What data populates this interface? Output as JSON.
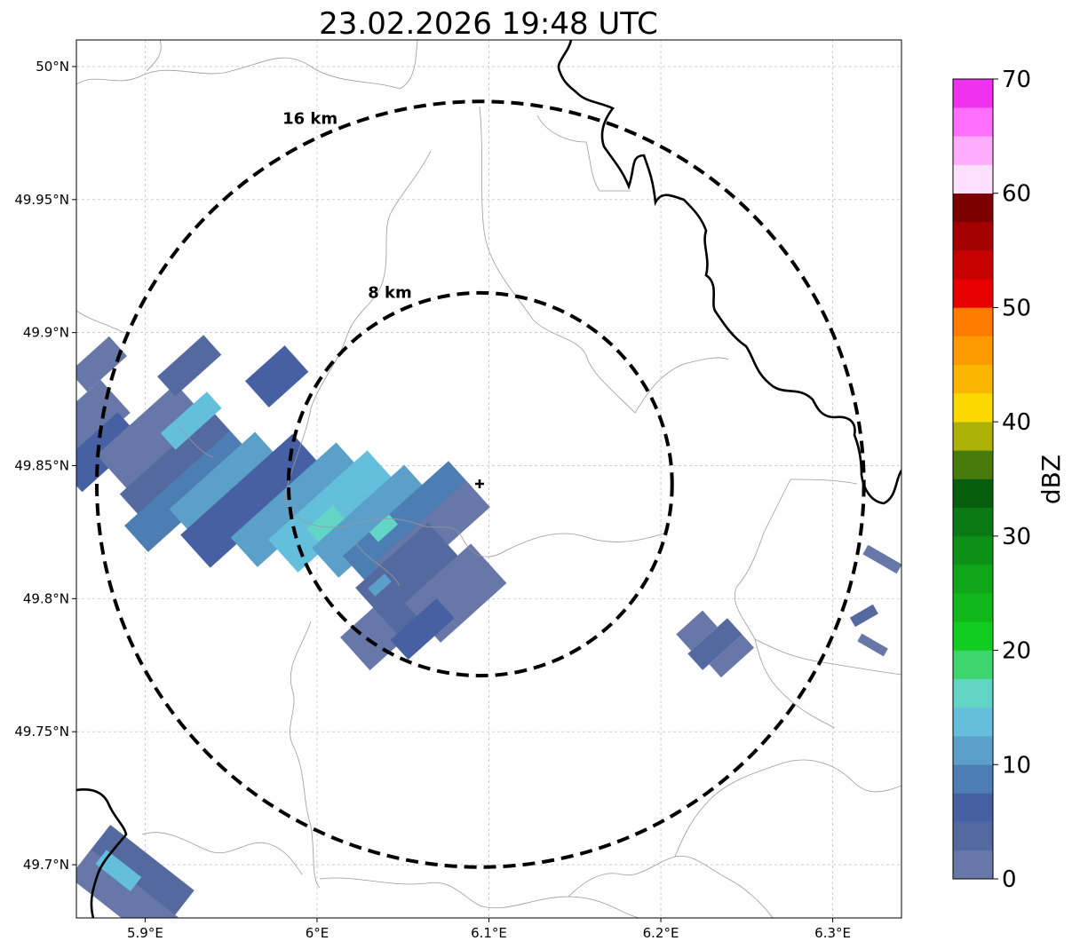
{
  "title": "23.02.2026 19:48 UTC",
  "map": {
    "lon_range": [
      5.86,
      6.34
    ],
    "lat_range": [
      49.68,
      50.01
    ],
    "x_ticks": [
      {
        "value": 5.9,
        "label": "5.9°E"
      },
      {
        "value": 6.0,
        "label": "6°E"
      },
      {
        "value": 6.1,
        "label": "6.1°E"
      },
      {
        "value": 6.2,
        "label": "6.2°E"
      },
      {
        "value": 6.3,
        "label": "6.3°E"
      }
    ],
    "y_ticks": [
      {
        "value": 50.0,
        "label": "50°N"
      },
      {
        "value": 49.95,
        "label": "49.95°N"
      },
      {
        "value": 49.9,
        "label": "49.9°N"
      },
      {
        "value": 49.85,
        "label": "49.85°N"
      },
      {
        "value": 49.8,
        "label": "49.8°N"
      },
      {
        "value": 49.75,
        "label": "49.75°N"
      },
      {
        "value": 49.7,
        "label": "49.7°N"
      }
    ],
    "grid": true,
    "radar_site": {
      "lon": 6.095,
      "lat": 49.843
    },
    "range_rings": [
      {
        "radius_km": 16,
        "label": "16 km"
      },
      {
        "radius_km": 8,
        "label": "8 km"
      }
    ]
  },
  "colorbar": {
    "label": "dBZ",
    "min": 0,
    "max": 70,
    "step": 2.5,
    "tick_labels": [
      "0",
      "10",
      "20",
      "30",
      "40",
      "50",
      "60",
      "70"
    ],
    "colors": [
      "#6677a8",
      "#5469a0",
      "#4660a3",
      "#4c7db3",
      "#5aa0c8",
      "#64bfdd",
      "#62d5c6",
      "#3ed56f",
      "#12cc22",
      "#10b81a",
      "#0fa719",
      "#0c9116",
      "#0a7a12",
      "#075f0e",
      "#487b0a",
      "#adb005",
      "#fbd800",
      "#fbb600",
      "#fc9a00",
      "#fe7b00",
      "#e80000",
      "#c70000",
      "#a50000",
      "#7d0000",
      "#ffe0ff",
      "#ffaeff",
      "#ff6eff",
      "#f031f0"
    ]
  },
  "echoes": [
    {
      "lon": 5.93,
      "lat": 49.87,
      "dbz": 3
    },
    {
      "lon": 5.95,
      "lat": 49.83,
      "dbz": 13
    },
    {
      "lon": 5.97,
      "lat": 49.81,
      "dbz": 15
    },
    {
      "lon": 6.05,
      "lat": 49.8,
      "dbz": 3
    },
    {
      "lon": 6.23,
      "lat": 49.78,
      "dbz": 3
    },
    {
      "lon": 6.32,
      "lat": 49.81,
      "dbz": 3
    },
    {
      "lon": 5.88,
      "lat": 49.69,
      "dbz": 12
    }
  ]
}
